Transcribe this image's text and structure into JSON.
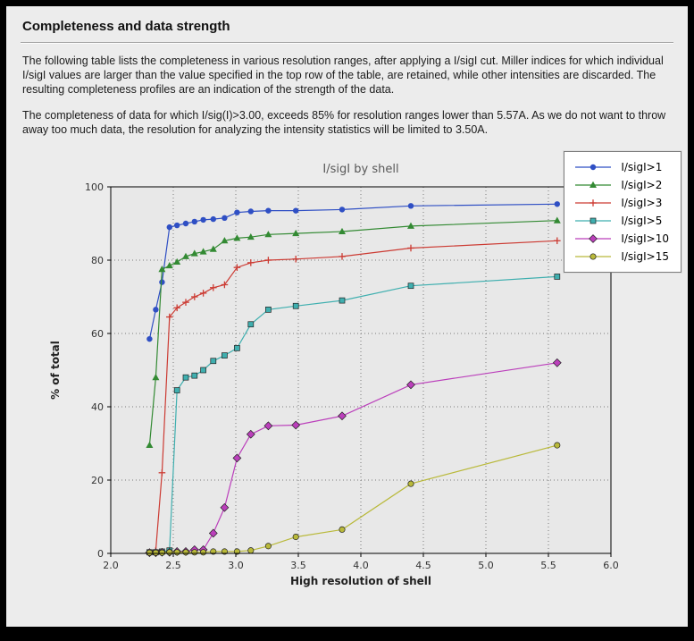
{
  "header": {
    "title": "Completeness and data strength"
  },
  "paragraphs": [
    "The following table lists the completeness in various resolution ranges, after applying a I/sigI cut. Miller indices for which individual I/sigI values are larger than the value specified in the top row of the table, are retained, while other intensities are discarded. The resulting completeness profiles are an indication of the strength of the data.",
    "The completeness of data for which I/sig(I)>3.00, exceeds  85% for resolution ranges lower than 5.57A. As we do not want to throw away too much data, the resolution for analyzing the intensity statistics will be limited to 3.50A."
  ],
  "chart_data": {
    "type": "line",
    "title": "I/sigI by shell",
    "xlabel": "High resolution of shell",
    "ylabel": "% of total",
    "xlim": [
      2.0,
      6.0
    ],
    "ylim": [
      0,
      100
    ],
    "grid": true,
    "legend_position": "upper right, outside plot",
    "plot_bg": "#e8e8e8",
    "grid_color": "#7a7a7a",
    "xticks": [
      2.0,
      2.5,
      3.0,
      3.5,
      4.0,
      4.5,
      5.0,
      5.5,
      6.0
    ],
    "xtick_labels": [
      "2.0",
      "2.5",
      "3.0",
      "3.5",
      "4.0",
      "4.5",
      "5.0",
      "5.5",
      "6.0"
    ],
    "yticks": [
      0,
      20,
      40,
      60,
      80,
      100
    ],
    "ytick_labels": [
      "0",
      "20",
      "40",
      "60",
      "80",
      "100"
    ],
    "x": [
      2.31,
      2.36,
      2.41,
      2.47,
      2.53,
      2.6,
      2.67,
      2.74,
      2.82,
      2.91,
      3.01,
      3.12,
      3.26,
      3.48,
      3.85,
      4.4,
      5.57
    ],
    "series": [
      {
        "name": "I/sigI>1",
        "color": "#2f4fc4",
        "marker": "circle",
        "values": [
          58.5,
          66.5,
          74.0,
          89.0,
          89.5,
          90.0,
          90.5,
          91.0,
          91.2,
          91.5,
          93.0,
          93.3,
          93.5,
          93.5,
          93.8,
          94.8,
          95.3
        ]
      },
      {
        "name": "I/sigI>2",
        "color": "#338a33",
        "marker": "triangle",
        "values": [
          29.5,
          48.0,
          77.5,
          78.5,
          79.5,
          81.0,
          81.8,
          82.3,
          83.0,
          85.3,
          86.0,
          86.3,
          87.0,
          87.3,
          87.8,
          89.3,
          90.8
        ]
      },
      {
        "name": "I/sigI>3",
        "color": "#cc3b33",
        "marker": "plus",
        "values": [
          0.3,
          0.8,
          22.0,
          64.5,
          67.0,
          68.5,
          70.0,
          71.0,
          72.5,
          73.3,
          78.0,
          79.3,
          80.0,
          80.3,
          81.0,
          83.3,
          85.3
        ]
      },
      {
        "name": "I/sigI>5",
        "color": "#3fafaf",
        "marker": "square",
        "values": [
          0.3,
          0.3,
          0.5,
          0.8,
          44.5,
          48.0,
          48.5,
          50.0,
          52.5,
          54.0,
          56.0,
          62.5,
          66.5,
          67.5,
          69.0,
          73.0,
          75.5
        ]
      },
      {
        "name": "I/sigI>10",
        "color": "#bb3fbb",
        "marker": "diamond",
        "values": [
          0.2,
          0.2,
          0.3,
          0.3,
          0.5,
          0.5,
          1.0,
          1.0,
          5.5,
          12.5,
          26.0,
          32.5,
          34.8,
          35.0,
          37.5,
          46.0,
          52.0
        ]
      },
      {
        "name": "I/sigI>15",
        "color": "#b9b93a",
        "marker": "circle-edge",
        "values": [
          0.2,
          0.2,
          0.2,
          0.3,
          0.3,
          0.3,
          0.3,
          0.3,
          0.5,
          0.5,
          0.5,
          0.8,
          2.0,
          4.5,
          6.5,
          19.0,
          29.5
        ]
      }
    ]
  }
}
